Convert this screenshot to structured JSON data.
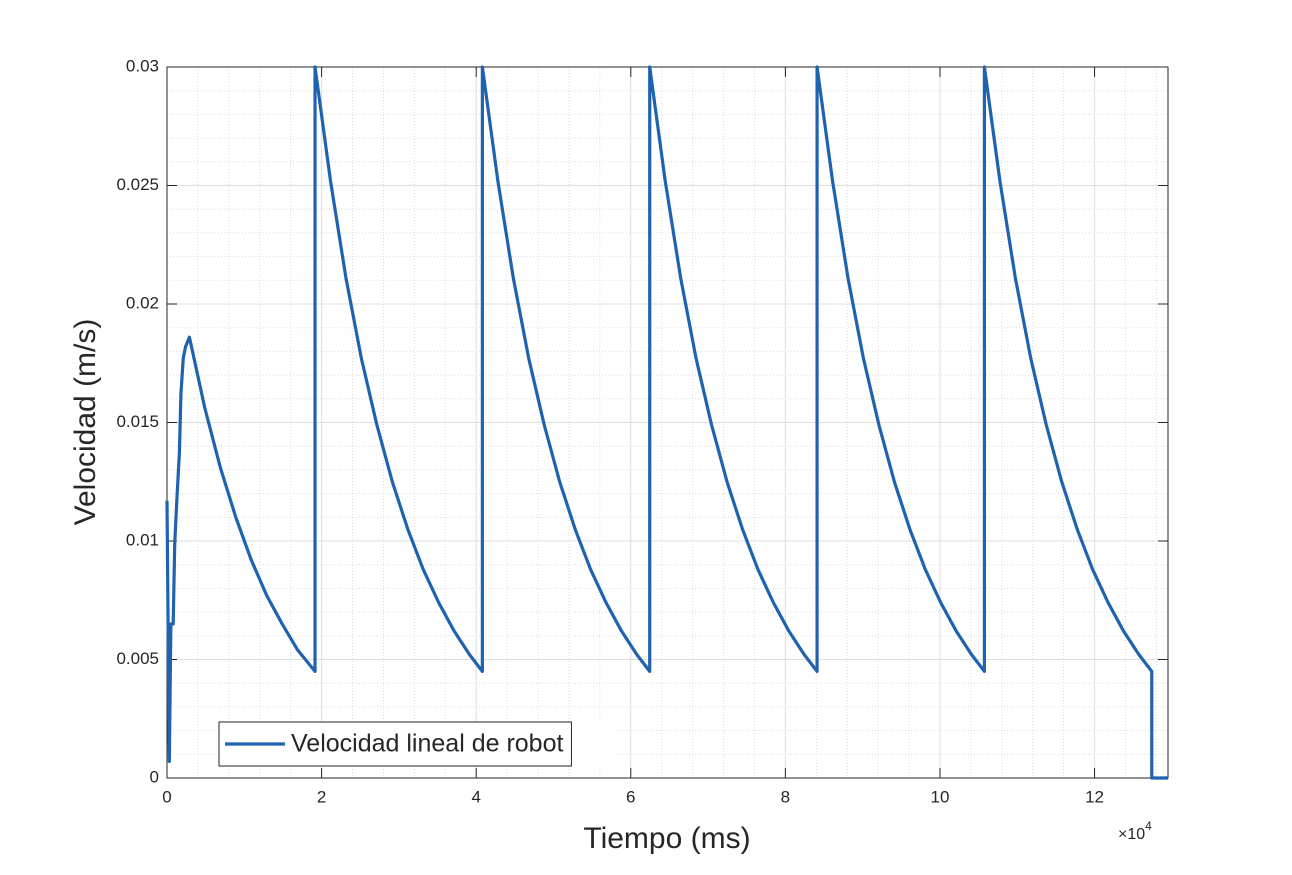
{
  "chart_data": {
    "type": "line",
    "xlabel": "Tiempo (ms)",
    "ylabel": "Velocidad (m/s)",
    "x_exponent": {
      "base": "×10",
      "power": "4"
    },
    "xlim": [
      0,
      129500
    ],
    "ylim": [
      0,
      0.03
    ],
    "xticks": [
      0,
      {
        "value": 20000,
        "label": "2"
      },
      {
        "value": 40000,
        "label": "4"
      },
      {
        "value": 60000,
        "label": "6"
      },
      {
        "value": 80000,
        "label": "8"
      },
      {
        "value": 100000,
        "label": "10"
      },
      {
        "value": 120000,
        "label": "12"
      }
    ],
    "yticks": [
      0,
      0.005,
      0.01,
      0.015,
      0.02,
      0.025,
      0.03
    ],
    "grid": true,
    "minor_grid": true,
    "legend_position": "lower-left",
    "x": [
      0,
      300,
      500,
      800,
      1000,
      1300,
      1600,
      1800,
      2100,
      2400,
      2900,
      4900,
      6900,
      8900,
      10900,
      12900,
      14900,
      16900,
      19150,
      19150,
      21150,
      23150,
      25150,
      27150,
      29150,
      31150,
      33150,
      35150,
      37150,
      39150,
      40800,
      40800,
      42800,
      44800,
      46800,
      48800,
      50800,
      52800,
      54800,
      56800,
      58800,
      60800,
      62450,
      62450,
      64450,
      66450,
      68450,
      70450,
      72450,
      74450,
      76450,
      78450,
      80450,
      82450,
      84100,
      84100,
      86100,
      88100,
      90100,
      92100,
      94100,
      96100,
      98100,
      100100,
      102100,
      104100,
      105750,
      105750,
      107750,
      109750,
      111750,
      113750,
      115750,
      117750,
      119750,
      121750,
      123750,
      125750,
      127400,
      127400,
      129500
    ],
    "series": [
      {
        "name": "Velocidad lineal de robot",
        "color": "#1f62b0",
        "values": [
          0.0117,
          0.0007,
          0.0065,
          0.0065,
          0.0099,
          0.0119,
          0.0137,
          0.0162,
          0.0177,
          0.0182,
          0.0186,
          0.0156,
          0.0131,
          0.011,
          0.0092,
          0.0077,
          0.0065,
          0.0054,
          0.0045,
          0.03,
          0.0252,
          0.0211,
          0.0177,
          0.0149,
          0.0125,
          0.0105,
          0.0088,
          0.0074,
          0.0062,
          0.0052,
          0.0045,
          0.03,
          0.0252,
          0.0211,
          0.0177,
          0.0149,
          0.0125,
          0.0105,
          0.0088,
          0.0074,
          0.0062,
          0.0052,
          0.0045,
          0.03,
          0.0252,
          0.0211,
          0.0177,
          0.0149,
          0.0125,
          0.0105,
          0.0088,
          0.0074,
          0.0062,
          0.0052,
          0.0045,
          0.03,
          0.0252,
          0.0211,
          0.0177,
          0.0149,
          0.0125,
          0.0105,
          0.0088,
          0.0074,
          0.0062,
          0.0052,
          0.0045,
          0.03,
          0.0252,
          0.0211,
          0.0177,
          0.0149,
          0.0125,
          0.0105,
          0.0088,
          0.0074,
          0.0062,
          0.0052,
          0.0045,
          0,
          0
        ]
      }
    ]
  }
}
